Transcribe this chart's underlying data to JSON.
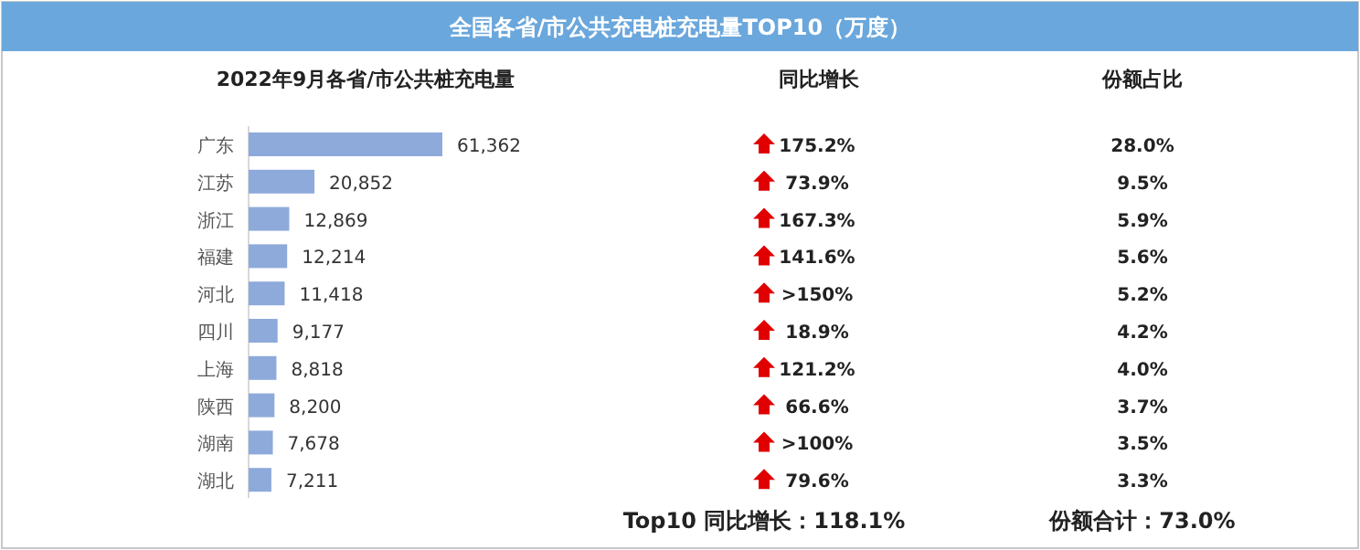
{
  "chart_data": [
    {
      "type": "bar",
      "orientation": "horizontal",
      "title": "全国各省/市公共充电桩充电量TOP10（万度）",
      "subtitle": "2022年9月各省/市公共桩充电量",
      "categories": [
        "广东",
        "江苏",
        "浙江",
        "福建",
        "河北",
        "四川",
        "上海",
        "陕西",
        "湖南",
        "湖北"
      ],
      "values": [
        61362,
        20852,
        12869,
        12214,
        11418,
        9177,
        8818,
        8200,
        7678,
        7211
      ],
      "color": "#8eaadb",
      "data_labels": true,
      "value_labels": [
        "61,362",
        "20,852",
        "12,869",
        "12,214",
        "11,418",
        "9,177",
        "8,818",
        "8,200",
        "7,678",
        "7,211"
      ]
    },
    {
      "type": "other",
      "title": "同比增长",
      "annotations": [
        "175.2%",
        "73.9%",
        "167.3%",
        "141.6%",
        ">150%",
        "18.9%",
        "121.2%",
        "66.6%",
        ">100%",
        "79.6%",
        "Top10 同比增长：118.1%"
      ]
    },
    {
      "type": "other",
      "title": "份额占比",
      "annotations": [
        "28.0%",
        "9.5%",
        "5.9%",
        "5.6%",
        "5.2%",
        "4.2%",
        "4.0%",
        "3.7%",
        "3.5%",
        "3.3%",
        "份额合计：73.0%"
      ]
    }
  ]
}
